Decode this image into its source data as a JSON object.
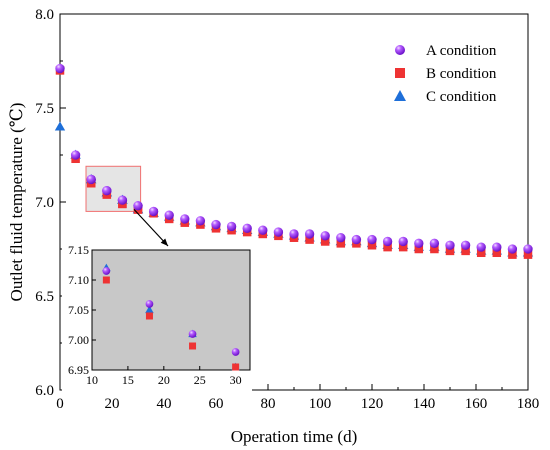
{
  "chart_data": {
    "type": "scatter",
    "xlabel": "Operation time (d)",
    "ylabel": "Outlet fluid temperature (℃)",
    "xlim": [
      0,
      180
    ],
    "ylim": [
      6.0,
      8.0
    ],
    "xticks": [
      0,
      20,
      40,
      60,
      80,
      100,
      120,
      140,
      160,
      180
    ],
    "yticks": [
      6.0,
      6.5,
      7.0,
      7.5,
      8.0
    ],
    "x": [
      0,
      6,
      12,
      18,
      24,
      30,
      36,
      42,
      48,
      54,
      60,
      66,
      72,
      78,
      84,
      90,
      96,
      102,
      108,
      114,
      120,
      126,
      132,
      138,
      144,
      150,
      156,
      162,
      168,
      174,
      180
    ],
    "series": [
      {
        "name": "A condition",
        "marker": "sphere",
        "color": "#9933ff",
        "values": [
          7.71,
          7.25,
          7.12,
          7.06,
          7.01,
          6.98,
          6.95,
          6.93,
          6.91,
          6.9,
          6.88,
          6.87,
          6.86,
          6.85,
          6.84,
          6.83,
          6.83,
          6.82,
          6.81,
          6.8,
          6.8,
          6.79,
          6.79,
          6.78,
          6.78,
          6.77,
          6.77,
          6.76,
          6.76,
          6.75,
          6.75
        ]
      },
      {
        "name": "B condition",
        "marker": "square",
        "color": "#ee3333",
        "values": [
          7.7,
          7.23,
          7.1,
          7.04,
          6.99,
          6.96,
          6.94,
          6.91,
          6.89,
          6.88,
          6.86,
          6.85,
          6.84,
          6.83,
          6.82,
          6.81,
          6.8,
          6.79,
          6.78,
          6.78,
          6.77,
          6.76,
          6.76,
          6.75,
          6.75,
          6.74,
          6.74,
          6.73,
          6.73,
          6.72,
          6.72
        ]
      },
      {
        "name": "C condition",
        "marker": "triangle",
        "color": "#1e6fd9",
        "values": [
          7.4,
          7.25,
          7.12,
          7.05,
          7.01,
          6.96,
          6.94,
          6.92,
          6.9,
          6.89,
          6.87,
          6.86,
          6.85,
          6.84,
          6.83,
          6.82,
          6.81,
          6.8,
          6.79,
          6.79,
          6.78,
          6.77,
          6.77,
          6.76,
          6.76,
          6.75,
          6.75,
          6.74,
          6.74,
          6.73,
          6.73
        ]
      }
    ],
    "legend_position": "top-right",
    "highlight_box": {
      "xlim": [
        10,
        31
      ],
      "ylim": [
        6.95,
        7.19
      ]
    },
    "inset": {
      "position": "bottom-left",
      "background": "#c8c8c8",
      "xlim": [
        10,
        32
      ],
      "ylim": [
        6.95,
        7.15
      ],
      "xticks": [
        10,
        15,
        20,
        25,
        30
      ],
      "yticks": [
        6.95,
        7.0,
        7.05,
        7.1,
        7.15
      ],
      "ytick_labels": [
        "6.95",
        "7.00",
        "7.05",
        "7.10",
        "7.15"
      ],
      "x": [
        12,
        18,
        24,
        30
      ],
      "series": [
        {
          "name": "A condition",
          "values": [
            7.115,
            7.06,
            7.01,
            6.98
          ]
        },
        {
          "name": "B condition",
          "values": [
            7.1,
            7.04,
            6.99,
            6.955
          ]
        },
        {
          "name": "C condition",
          "values": [
            7.12,
            7.05,
            7.01,
            6.955
          ]
        }
      ]
    }
  }
}
